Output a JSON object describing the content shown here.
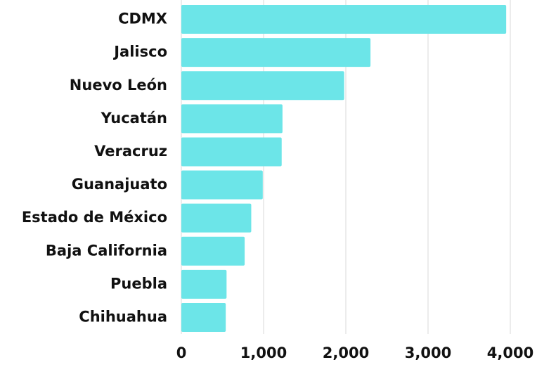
{
  "chart_data": {
    "type": "bar",
    "orientation": "horizontal",
    "categories": [
      "CDMX",
      "Jalisco",
      "Nuevo León",
      "Yucatán",
      "Veracruz",
      "Guanajuato",
      "Estado de México",
      "Baja California",
      "Puebla",
      "Chihuahua"
    ],
    "values": [
      3950,
      2300,
      1980,
      1230,
      1220,
      990,
      850,
      770,
      550,
      540
    ],
    "color": "#6ce5e8",
    "xlim": [
      0,
      4000
    ],
    "xticks": [
      0,
      {
        "value": 1000,
        "label": "1,000"
      },
      {
        "value": 2000,
        "label": "2,000"
      },
      {
        "value": 3000,
        "label": "3,000"
      },
      {
        "value": 4000,
        "label": "4,000"
      }
    ],
    "grid": true
  }
}
